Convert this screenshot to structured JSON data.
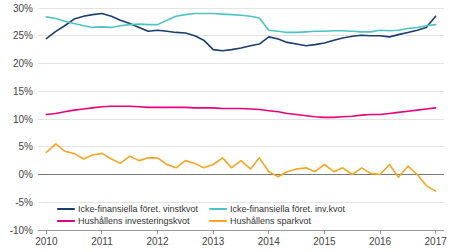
{
  "chart_data": {
    "type": "line",
    "x": [
      2010.0,
      2010.17,
      2010.33,
      2010.5,
      2010.67,
      2010.83,
      2011.0,
      2011.17,
      2011.33,
      2011.5,
      2011.67,
      2011.83,
      2012.0,
      2012.17,
      2012.33,
      2012.5,
      2012.67,
      2012.83,
      2013.0,
      2013.17,
      2013.33,
      2013.5,
      2013.67,
      2013.83,
      2014.0,
      2014.17,
      2014.33,
      2014.5,
      2014.67,
      2014.83,
      2015.0,
      2015.17,
      2015.33,
      2015.5,
      2015.67,
      2015.83,
      2016.0,
      2016.17,
      2016.33,
      2016.5,
      2016.67,
      2016.83,
      2017.0
    ],
    "series": [
      {
        "name": "Icke-finansiella föret. vinstkvot",
        "color": "#1a3e72",
        "values": [
          0.245,
          0.258,
          0.268,
          0.28,
          0.285,
          0.288,
          0.29,
          0.285,
          0.278,
          0.272,
          0.265,
          0.258,
          0.26,
          0.258,
          0.256,
          0.255,
          0.25,
          0.242,
          0.225,
          0.223,
          0.225,
          0.228,
          0.232,
          0.235,
          0.248,
          0.244,
          0.238,
          0.235,
          0.232,
          0.234,
          0.237,
          0.242,
          0.246,
          0.249,
          0.251,
          0.25,
          0.25,
          0.248,
          0.252,
          0.256,
          0.26,
          0.265,
          0.285
        ]
      },
      {
        "name": "Icke-finansiella föret. inv.kvot",
        "color": "#4fc3c3",
        "values": [
          0.284,
          0.281,
          0.276,
          0.272,
          0.268,
          0.265,
          0.266,
          0.265,
          0.268,
          0.27,
          0.271,
          0.27,
          0.27,
          0.278,
          0.285,
          0.288,
          0.29,
          0.29,
          0.29,
          0.289,
          0.288,
          0.287,
          0.285,
          0.282,
          0.26,
          0.258,
          0.256,
          0.256,
          0.257,
          0.258,
          0.258,
          0.259,
          0.259,
          0.258,
          0.257,
          0.257,
          0.26,
          0.259,
          0.26,
          0.263,
          0.265,
          0.268,
          0.27
        ]
      },
      {
        "name": "Hushållens investeringskvot",
        "color": "#e8007a",
        "values": [
          0.108,
          0.11,
          0.113,
          0.116,
          0.118,
          0.12,
          0.122,
          0.123,
          0.123,
          0.123,
          0.122,
          0.121,
          0.121,
          0.121,
          0.121,
          0.121,
          0.12,
          0.12,
          0.12,
          0.119,
          0.119,
          0.119,
          0.118,
          0.117,
          0.115,
          0.113,
          0.11,
          0.108,
          0.106,
          0.104,
          0.103,
          0.103,
          0.104,
          0.105,
          0.107,
          0.108,
          0.108,
          0.11,
          0.112,
          0.114,
          0.116,
          0.118,
          0.12
        ]
      },
      {
        "name": "Hushållens sparkvot",
        "color": "#f5a623",
        "values": [
          0.04,
          0.055,
          0.042,
          0.038,
          0.028,
          0.035,
          0.038,
          0.028,
          0.02,
          0.033,
          0.025,
          0.03,
          0.03,
          0.018,
          0.012,
          0.025,
          0.02,
          0.012,
          0.018,
          0.03,
          0.012,
          0.025,
          0.01,
          0.03,
          0.005,
          -0.004,
          0.005,
          0.01,
          0.012,
          0.005,
          0.018,
          0.005,
          0.012,
          0.0,
          0.012,
          0.002,
          0.0,
          0.018,
          -0.005,
          0.015,
          0.0,
          -0.02,
          -0.03
        ]
      }
    ],
    "xlim": [
      2009.85,
      2017.15
    ],
    "xticks": [
      2010,
      2011,
      2012,
      2013,
      2014,
      2015,
      2016,
      2017
    ],
    "ylim": [
      -0.1,
      0.3
    ],
    "yticks": [
      {
        "value": -0.1,
        "label": "-10%"
      },
      {
        "value": -0.05,
        "label": "-5%"
      },
      {
        "value": 0.0,
        "label": "0%"
      },
      {
        "value": 0.05,
        "label": "5%"
      },
      {
        "value": 0.1,
        "label": "10%"
      },
      {
        "value": 0.15,
        "label": "15%"
      },
      {
        "value": 0.2,
        "label": "20%"
      },
      {
        "value": 0.25,
        "label": "25%"
      },
      {
        "value": 0.3,
        "label": "30%"
      }
    ],
    "grid": true,
    "legend": "lower left"
  }
}
